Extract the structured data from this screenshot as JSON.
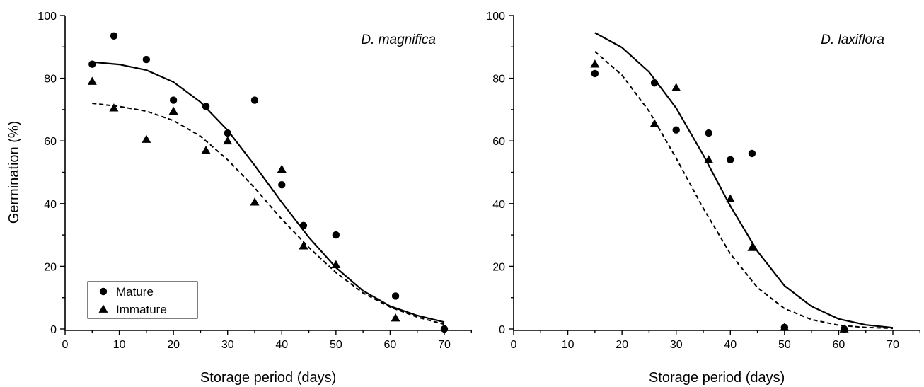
{
  "chart_data": [
    {
      "type": "scatter",
      "title": "D. magnifica",
      "xlabel": "Storage period (days)",
      "ylabel": "Germination (%)",
      "xlim": [
        0,
        75
      ],
      "ylim": [
        -2,
        100
      ],
      "xticks": [
        0,
        10,
        20,
        30,
        40,
        50,
        60,
        70
      ],
      "yticks": [
        0,
        20,
        40,
        60,
        80,
        100
      ],
      "legend": {
        "placement": "bottom-left",
        "entries": [
          "Mature",
          "Immature"
        ]
      },
      "series": [
        {
          "name": "Mature",
          "marker": "circle",
          "x": [
            5,
            9,
            15,
            20,
            26,
            30,
            35,
            40,
            44,
            50,
            61,
            70
          ],
          "y": [
            84.5,
            93.5,
            86,
            73,
            71,
            62.5,
            73,
            46,
            33,
            30,
            10.5,
            0
          ]
        },
        {
          "name": "Immature",
          "marker": "triangle",
          "x": [
            5,
            9,
            15,
            20,
            26,
            30,
            35,
            40,
            44,
            50,
            61
          ],
          "y": [
            79,
            70.5,
            60.5,
            69.5,
            57,
            60,
            40.5,
            51,
            26.5,
            20.5,
            3.5
          ]
        }
      ],
      "fits": [
        {
          "series": "Mature",
          "style": "solid",
          "x": [
            5,
            10,
            15,
            20,
            25,
            30,
            35,
            40,
            45,
            50,
            55,
            60,
            65,
            70
          ],
          "y": [
            85.2,
            84.4,
            82.6,
            78.8,
            72.4,
            63.4,
            52.2,
            40.4,
            29.2,
            19.6,
            12.2,
            7.3,
            4.3,
            2.2
          ]
        },
        {
          "series": "Immature",
          "style": "dashed",
          "x": [
            5,
            10,
            15,
            20,
            25,
            30,
            35,
            40,
            45,
            50,
            55,
            60,
            65,
            70
          ],
          "y": [
            72,
            71,
            69.5,
            66.5,
            61.5,
            54,
            45,
            35,
            26,
            18,
            11.5,
            7,
            3.8,
            1.5
          ]
        }
      ]
    },
    {
      "type": "scatter",
      "title": "D. laxiflora",
      "xlabel": "Storage period (days)",
      "ylabel": "",
      "xlim": [
        0,
        75
      ],
      "ylim": [
        -2,
        100
      ],
      "xticks": [
        0,
        10,
        20,
        30,
        40,
        50,
        60,
        70
      ],
      "yticks": [
        0,
        20,
        40,
        60,
        80,
        100
      ],
      "series": [
        {
          "name": "Mature",
          "marker": "circle",
          "x": [
            15,
            26,
            30,
            36,
            40,
            44,
            50,
            61
          ],
          "y": [
            81.5,
            78.5,
            63.5,
            62.5,
            54,
            56,
            0.5,
            0
          ]
        },
        {
          "name": "Immature",
          "marker": "triangle",
          "x": [
            15,
            26,
            30,
            36,
            40,
            44,
            50,
            61
          ],
          "y": [
            84.5,
            65.5,
            77,
            54,
            41.5,
            26,
            0.5,
            0
          ]
        }
      ],
      "fits": [
        {
          "series": "Mature",
          "style": "solid",
          "x": [
            15,
            20,
            25,
            30,
            35,
            40,
            45,
            50,
            55,
            60,
            65,
            70
          ],
          "y": [
            94.5,
            89.8,
            82,
            70.5,
            55.5,
            39.2,
            24.8,
            13.8,
            7.2,
            3.2,
            1.3,
            0.4
          ]
        },
        {
          "series": "Immature",
          "style": "dashed",
          "x": [
            15,
            20,
            25,
            30,
            35,
            40,
            45,
            50,
            55,
            60,
            65,
            70
          ],
          "y": [
            88.5,
            81,
            69.5,
            54.5,
            38.5,
            24,
            13.2,
            6.5,
            3,
            1.2,
            0.5,
            0.2
          ]
        }
      ]
    }
  ]
}
